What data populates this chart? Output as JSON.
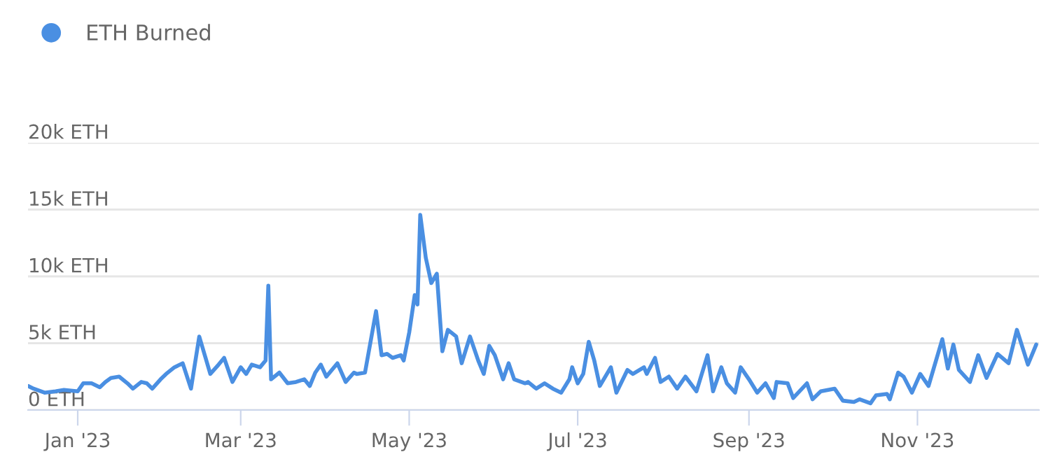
{
  "chart_data": {
    "type": "line",
    "x": [
      "2022-12-14",
      "2022-12-16",
      "2022-12-20",
      "2022-12-24",
      "2022-12-27",
      "2023-01-01",
      "2023-01-03",
      "2023-01-06",
      "2023-01-09",
      "2023-01-11",
      "2023-01-13",
      "2023-01-16",
      "2023-01-19",
      "2023-01-21",
      "2023-01-24",
      "2023-01-26",
      "2023-01-28",
      "2023-01-31",
      "2023-02-02",
      "2023-02-05",
      "2023-02-08",
      "2023-02-11",
      "2023-02-14",
      "2023-02-16",
      "2023-02-18",
      "2023-02-21",
      "2023-02-23",
      "2023-02-26",
      "2023-03-01",
      "2023-03-03",
      "2023-03-05",
      "2023-03-08",
      "2023-03-10",
      "2023-03-11",
      "2023-03-12",
      "2023-03-15",
      "2023-03-18",
      "2023-03-21",
      "2023-03-24",
      "2023-03-26",
      "2023-03-28",
      "2023-03-30",
      "2023-04-01",
      "2023-04-05",
      "2023-04-08",
      "2023-04-11",
      "2023-04-12",
      "2023-04-15",
      "2023-04-19",
      "2023-04-21",
      "2023-04-23",
      "2023-04-25",
      "2023-04-28",
      "2023-04-29",
      "2023-05-01",
      "2023-05-03",
      "2023-05-04",
      "2023-05-05",
      "2023-05-07",
      "2023-05-09",
      "2023-05-11",
      "2023-05-13",
      "2023-05-15",
      "2023-05-18",
      "2023-05-20",
      "2023-05-23",
      "2023-05-26",
      "2023-05-28",
      "2023-05-30",
      "2023-06-01",
      "2023-06-04",
      "2023-06-06",
      "2023-06-08",
      "2023-06-12",
      "2023-06-13",
      "2023-06-16",
      "2023-06-19",
      "2023-06-22",
      "2023-06-25",
      "2023-06-28",
      "2023-06-29",
      "2023-07-01",
      "2023-07-03",
      "2023-07-05",
      "2023-07-07",
      "2023-07-09",
      "2023-07-13",
      "2023-07-15",
      "2023-07-19",
      "2023-07-21",
      "2023-07-25",
      "2023-07-26",
      "2023-07-29",
      "2023-07-31",
      "2023-08-03",
      "2023-08-06",
      "2023-08-09",
      "2023-08-13",
      "2023-08-17",
      "2023-08-19",
      "2023-08-22",
      "2023-08-24",
      "2023-08-27",
      "2023-08-29",
      "2023-09-01",
      "2023-09-04",
      "2023-09-07",
      "2023-09-10",
      "2023-09-11",
      "2023-09-15",
      "2023-09-17",
      "2023-09-22",
      "2023-09-24",
      "2023-09-27",
      "2023-10-02",
      "2023-10-05",
      "2023-10-09",
      "2023-10-11",
      "2023-10-15",
      "2023-10-17",
      "2023-10-21",
      "2023-10-22",
      "2023-10-25",
      "2023-10-27",
      "2023-10-30",
      "2023-11-02",
      "2023-11-05",
      "2023-11-07",
      "2023-11-10",
      "2023-11-12",
      "2023-11-14",
      "2023-11-16",
      "2023-11-20",
      "2023-11-23",
      "2023-11-26",
      "2023-11-30",
      "2023-12-04",
      "2023-12-07",
      "2023-12-11",
      "2023-12-14"
    ],
    "series": [
      {
        "name": "ETH Burned",
        "color": "#4a8fe2",
        "values": [
          1800,
          1600,
          1300,
          1400,
          1500,
          1400,
          2000,
          2000,
          1700,
          2100,
          2400,
          2500,
          2000,
          1600,
          2100,
          2000,
          1600,
          2300,
          2700,
          3200,
          3500,
          1600,
          5500,
          4100,
          2700,
          3400,
          3900,
          2100,
          3200,
          2700,
          3400,
          3200,
          3700,
          9300,
          2300,
          2800,
          2000,
          2100,
          2300,
          1800,
          2800,
          3400,
          2500,
          3500,
          2100,
          2800,
          2700,
          2800,
          7400,
          4100,
          4200,
          3900,
          4100,
          3700,
          5800,
          8600,
          7900,
          14600,
          11400,
          9500,
          10200,
          4400,
          6000,
          5500,
          3500,
          5500,
          3700,
          2700,
          4800,
          4100,
          2300,
          3500,
          2300,
          2000,
          2100,
          1600,
          2000,
          1600,
          1300,
          2300,
          3200,
          2000,
          2700,
          5100,
          3700,
          1800,
          3200,
          1300,
          3000,
          2700,
          3200,
          2700,
          3900,
          2100,
          2500,
          1600,
          2500,
          1400,
          4100,
          1400,
          3200,
          2000,
          1300,
          3200,
          2300,
          1300,
          2000,
          900,
          2100,
          2000,
          900,
          2000,
          800,
          1400,
          1600,
          700,
          600,
          800,
          500,
          1100,
          1200,
          800,
          2800,
          2500,
          1300,
          2700,
          1800,
          3200,
          5300,
          3100,
          4900,
          3000,
          2100,
          4100,
          2400,
          4200,
          3500,
          6000,
          3400,
          4900
        ]
      }
    ],
    "xlim": [
      "2022-12-14",
      "2023-12-15"
    ],
    "xticks": [
      {
        "value": "2023-01-01",
        "label": "Jan '23"
      },
      {
        "value": "2023-03-01",
        "label": "Mar '23"
      },
      {
        "value": "2023-05-01",
        "label": "May '23"
      },
      {
        "value": "2023-07-01",
        "label": "Jul '23"
      },
      {
        "value": "2023-09-01",
        "label": "Sep '23"
      },
      {
        "value": "2023-11-01",
        "label": "Nov '23"
      }
    ],
    "ylim": [
      0,
      20000
    ],
    "yticks": [
      {
        "value": 0,
        "label": "0 ETH"
      },
      {
        "value": 5000,
        "label": "5k ETH"
      },
      {
        "value": 10000,
        "label": "10k ETH"
      },
      {
        "value": 15000,
        "label": "15k ETH"
      },
      {
        "value": 20000,
        "label": "20k ETH"
      }
    ],
    "grid": "y",
    "legend": "top left",
    "line_style": "solid",
    "marker": "none"
  }
}
